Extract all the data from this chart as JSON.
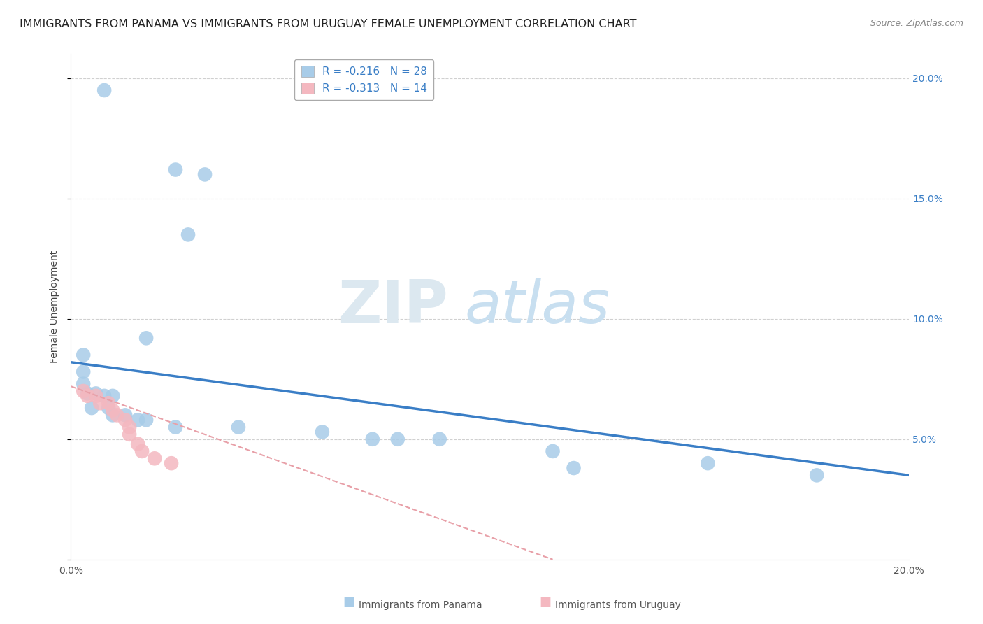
{
  "title": "IMMIGRANTS FROM PANAMA VS IMMIGRANTS FROM URUGUAY FEMALE UNEMPLOYMENT CORRELATION CHART",
  "source": "Source: ZipAtlas.com",
  "ylabel": "Female Unemployment",
  "xlim": [
    0.0,
    0.2
  ],
  "ylim": [
    0.0,
    0.21
  ],
  "ytick_values": [
    0.0,
    0.05,
    0.1,
    0.15,
    0.2
  ],
  "xtick_values": [
    0.0,
    0.05,
    0.1,
    0.15,
    0.2
  ],
  "watermark_zip": "ZIP",
  "watermark_atlas": "atlas",
  "legend_entry_1": "R = -0.216   N = 28",
  "legend_entry_2": "R = -0.313   N = 14",
  "panama_scatter": [
    [
      0.008,
      0.195
    ],
    [
      0.025,
      0.162
    ],
    [
      0.032,
      0.16
    ],
    [
      0.028,
      0.135
    ],
    [
      0.018,
      0.092
    ],
    [
      0.003,
      0.085
    ],
    [
      0.003,
      0.078
    ],
    [
      0.003,
      0.073
    ],
    [
      0.004,
      0.069
    ],
    [
      0.006,
      0.069
    ],
    [
      0.008,
      0.068
    ],
    [
      0.01,
      0.068
    ],
    [
      0.005,
      0.063
    ],
    [
      0.009,
      0.063
    ],
    [
      0.01,
      0.06
    ],
    [
      0.013,
      0.06
    ],
    [
      0.016,
      0.058
    ],
    [
      0.018,
      0.058
    ],
    [
      0.025,
      0.055
    ],
    [
      0.04,
      0.055
    ],
    [
      0.06,
      0.053
    ],
    [
      0.072,
      0.05
    ],
    [
      0.078,
      0.05
    ],
    [
      0.088,
      0.05
    ],
    [
      0.115,
      0.045
    ],
    [
      0.12,
      0.038
    ],
    [
      0.152,
      0.04
    ],
    [
      0.178,
      0.035
    ]
  ],
  "uruguay_scatter": [
    [
      0.003,
      0.07
    ],
    [
      0.004,
      0.068
    ],
    [
      0.006,
      0.068
    ],
    [
      0.007,
      0.065
    ],
    [
      0.009,
      0.065
    ],
    [
      0.01,
      0.062
    ],
    [
      0.011,
      0.06
    ],
    [
      0.013,
      0.058
    ],
    [
      0.014,
      0.055
    ],
    [
      0.014,
      0.052
    ],
    [
      0.016,
      0.048
    ],
    [
      0.017,
      0.045
    ],
    [
      0.02,
      0.042
    ],
    [
      0.024,
      0.04
    ]
  ],
  "panama_line_x": [
    0.0,
    0.2
  ],
  "panama_line_y": [
    0.082,
    0.035
  ],
  "uruguay_line_x": [
    0.0,
    0.115
  ],
  "uruguay_line_y": [
    0.072,
    0.0
  ],
  "panama_line_color": "#3a7ec6",
  "uruguay_line_color": "#e8a0a8",
  "panama_scatter_color": "#a8cce8",
  "uruguay_scatter_color": "#f4b8c0",
  "background_color": "#ffffff",
  "grid_color": "#d0d0d0",
  "title_fontsize": 11.5,
  "axis_label_fontsize": 10,
  "tick_fontsize": 10,
  "watermark_zip_color": "#dce8f0",
  "watermark_atlas_color": "#c8dff0",
  "watermark_fontsize": 62
}
